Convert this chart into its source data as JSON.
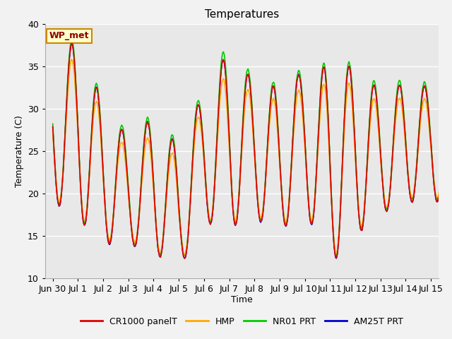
{
  "title": "Temperatures",
  "xlabel": "Time",
  "ylabel": "Temperature (C)",
  "ylim": [
    10,
    40
  ],
  "annotation": "WP_met",
  "plot_bg_color": "#e8e8e8",
  "fig_bg_color": "#f2f2f2",
  "grid_color": "#d0d0d0",
  "series": {
    "CR1000_panelT": {
      "color": "#dd0000",
      "label": "CR1000 panelT"
    },
    "HMP": {
      "color": "#ffaa00",
      "label": "HMP"
    },
    "NR01_PRT": {
      "color": "#00cc00",
      "label": "NR01 PRT"
    },
    "AM25T_PRT": {
      "color": "#0000cc",
      "label": "AM25T PRT"
    }
  },
  "tick_labels": [
    "Jun 30",
    "Jul 1",
    "Jul 2",
    "Jul 3",
    "Jul 4",
    "Jul 5",
    "Jul 6",
    "Jul 7",
    "Jul 8",
    "Jul 9",
    "Jul 10",
    "Jul 11",
    "Jul 12",
    "Jul 13",
    "Jul 14",
    "Jul 15"
  ],
  "tick_positions": [
    0,
    1,
    2,
    3,
    4,
    5,
    6,
    7,
    8,
    9,
    10,
    11,
    12,
    13,
    14,
    15
  ],
  "yticks": [
    10,
    15,
    20,
    25,
    30,
    35,
    40
  ],
  "legend_fontsize": 9,
  "title_fontsize": 11,
  "axis_fontsize": 9,
  "day_mins": [
    19.0,
    17.0,
    14.0,
    14.0,
    13.0,
    11.0,
    16.5,
    16.0,
    17.0,
    15.5,
    18.0,
    11.5,
    15.0,
    17.5,
    19.0,
    19.0
  ],
  "day_maxs": [
    36.5,
    38.0,
    30.5,
    26.5,
    29.0,
    25.5,
    32.0,
    37.0,
    33.0,
    32.5,
    34.5,
    35.0,
    35.0,
    32.0,
    33.0,
    32.5
  ],
  "hmp_offset_mins": [
    0.5,
    0.5,
    0.5,
    0.5,
    0.5,
    0.5,
    0.5,
    0.5,
    0.5,
    0.5,
    0.5,
    0.5,
    0.5,
    0.5,
    0.5,
    0.5
  ],
  "hmp_offset_maxs": [
    -1.5,
    -2.0,
    -1.5,
    -1.5,
    -2.0,
    -1.5,
    -1.5,
    -2.5,
    -1.5,
    -1.5,
    -2.0,
    -2.0,
    -2.0,
    -1.5,
    -1.5,
    -1.5
  ],
  "nr01_offset_mins": [
    0.3,
    0.3,
    0.3,
    0.3,
    0.3,
    0.3,
    0.3,
    0.3,
    0.3,
    0.3,
    0.3,
    0.3,
    0.3,
    0.3,
    0.3,
    0.3
  ],
  "nr01_offset_maxs": [
    0.5,
    0.5,
    0.5,
    0.5,
    0.5,
    0.5,
    0.5,
    1.0,
    0.5,
    0.5,
    0.5,
    0.5,
    0.5,
    0.5,
    0.5,
    0.5
  ]
}
